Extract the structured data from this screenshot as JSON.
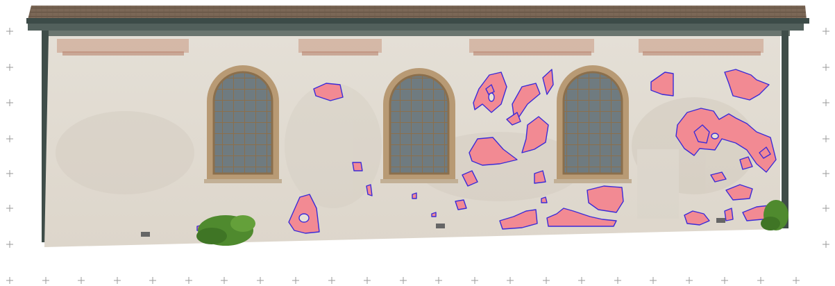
{
  "colors": {
    "background": "#ffffff",
    "roof": "#7a6654",
    "fascia": "#3b4a46",
    "wall": "#e6e1d8",
    "window_frame": "#8b6f4c",
    "window_glass": "#6f7b80",
    "damage_fill": "#f28a93",
    "damage_outline": "#3b2bd8",
    "grid_mark": "#a0a0a0",
    "shrub": "#4f8a2e"
  },
  "scene": {
    "description_free": true,
    "window_count": 3,
    "damage_region_count": 32,
    "grid_marks": "plus"
  }
}
